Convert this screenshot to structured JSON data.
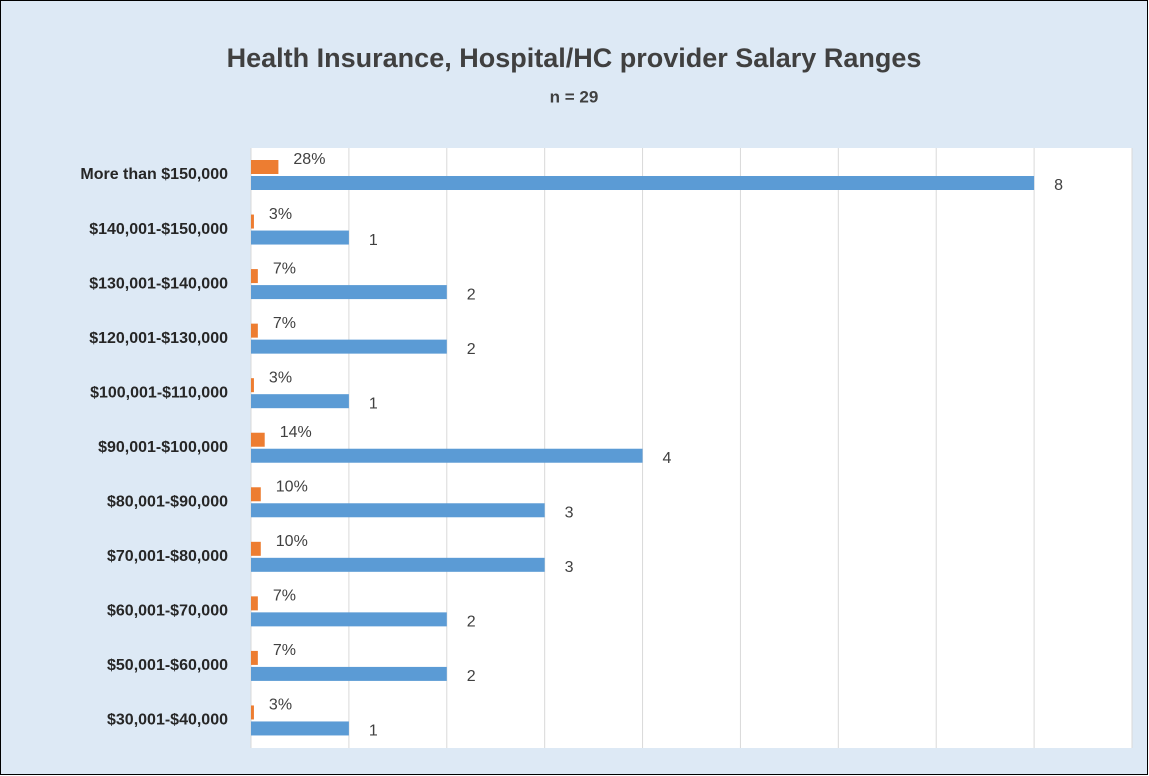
{
  "chart_data": {
    "type": "bar",
    "orientation": "horizontal",
    "title": "Health Insurance, Hospital/HC provider Salary Ranges",
    "subtitle": "n = 29",
    "categories": [
      "More than $150,000",
      "$140,001-$150,000",
      "$130,001-$140,000",
      "$120,001-$130,000",
      "$100,001-$110,000",
      "$90,001-$100,000",
      "$80,001-$90,000",
      "$70,001-$80,000",
      "$60,001-$70,000",
      "$50,001-$60,000",
      "$30,001-$40,000"
    ],
    "series": [
      {
        "color": "#ed7d31",
        "values": [
          0.28,
          0.03,
          0.07,
          0.07,
          0.03,
          0.14,
          0.1,
          0.1,
          0.07,
          0.07,
          0.03
        ],
        "value_labels": [
          "28%",
          "3%",
          "7%",
          "7%",
          "3%",
          "14%",
          "10%",
          "10%",
          "7%",
          "7%",
          "3%"
        ]
      },
      {
        "color": "#5b9bd5",
        "values": [
          8,
          1,
          2,
          2,
          1,
          4,
          3,
          3,
          2,
          2,
          1
        ]
      }
    ],
    "xlim": [
      0,
      9
    ],
    "xticks": [
      0,
      1,
      2,
      3,
      4,
      5,
      6,
      7,
      8,
      9
    ],
    "grid": true
  }
}
